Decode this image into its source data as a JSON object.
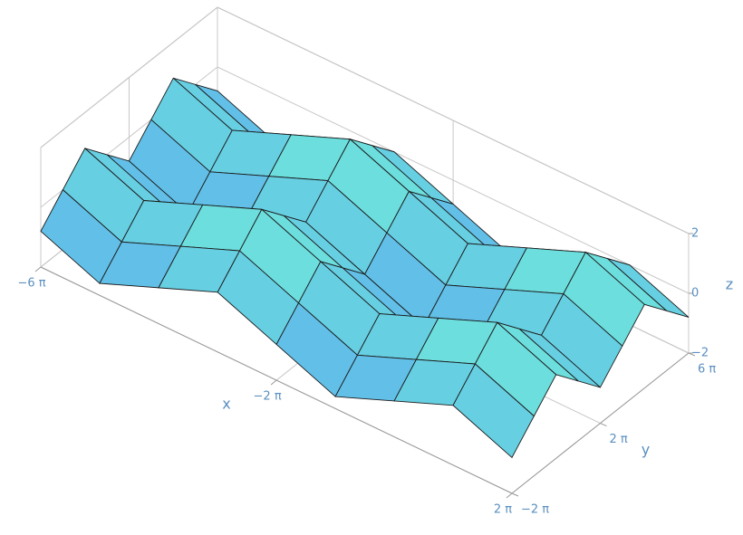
{
  "chart_data": {
    "type": "surface",
    "x": [
      -18.85,
      -15.71,
      -12.57,
      -9.42,
      -6.28,
      -3.14,
      0,
      3.14,
      6.28
    ],
    "y": [
      -6.28,
      -3.14,
      0,
      3.14,
      6.28,
      9.42,
      12.57,
      15.71,
      18.85
    ],
    "z": [
      [
        -0.8,
        0,
        0.8,
        0,
        -0.8,
        0,
        0.8,
        0,
        -0.8
      ],
      [
        -1.6,
        -0.8,
        0,
        -0.8,
        -1.6,
        -0.8,
        0,
        -0.8,
        -1.6
      ],
      [
        -0.8,
        0,
        0.8,
        0,
        -0.8,
        0,
        0.8,
        0,
        -0.8
      ],
      [
        0,
        0.8,
        1.6,
        0.8,
        0,
        0.8,
        1.6,
        0.8,
        0
      ],
      [
        -0.8,
        0,
        0.8,
        0,
        -0.8,
        0,
        0.8,
        0,
        -0.8
      ],
      [
        -1.6,
        -0.8,
        0,
        -0.8,
        -1.6,
        -0.8,
        0,
        -0.8,
        -1.6
      ],
      [
        -0.8,
        0,
        0.8,
        0,
        -0.8,
        0,
        0.8,
        0,
        -0.8
      ],
      [
        0,
        0.8,
        1.6,
        0.8,
        0,
        0.8,
        1.6,
        0.8,
        0
      ],
      [
        -0.8,
        0,
        0.8,
        0,
        -0.8,
        0,
        0.8,
        0,
        -0.8
      ]
    ],
    "xlabel": "x",
    "ylabel": "y",
    "zlabel": "z",
    "xlim": [
      -18.85,
      6.28
    ],
    "ylim": [
      -6.28,
      18.85
    ],
    "zlim": [
      -2,
      2
    ],
    "xticks": [
      {
        "value": -18.85,
        "label": "−6 π"
      },
      {
        "value": -6.28,
        "label": "−2 π"
      },
      {
        "value": 6.28,
        "label": "2 π"
      }
    ],
    "yticks": [
      {
        "value": -6.28,
        "label": "−2 π"
      },
      {
        "value": 6.28,
        "label": "2 π"
      },
      {
        "value": 18.85,
        "label": "6 π"
      }
    ],
    "zticks": [
      {
        "value": -2,
        "label": "−2"
      },
      0,
      2
    ],
    "color_low": "#5aa8ee",
    "color_high": "#74f5d6",
    "grid": true
  }
}
